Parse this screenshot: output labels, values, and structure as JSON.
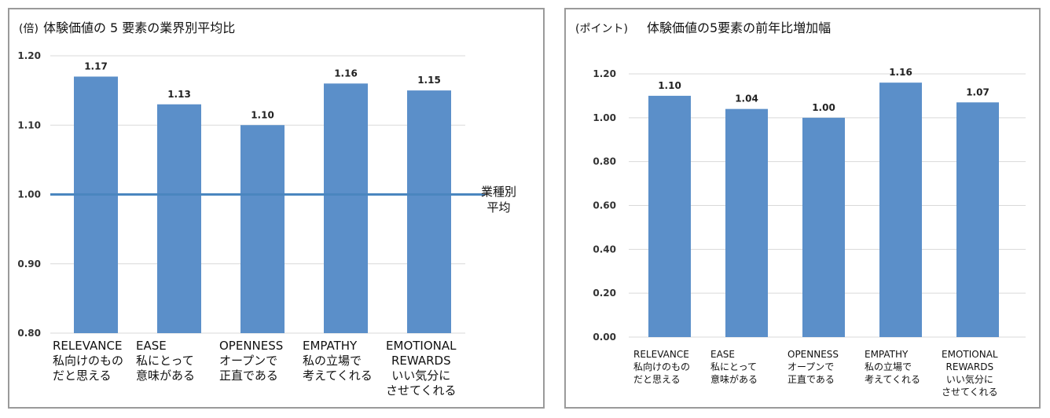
{
  "chart_data": [
    {
      "type": "bar",
      "unit": "(倍)",
      "title": "体験価値の 5 要素の業界別平均比",
      "categories": [
        {
          "en": "RELEVANCE",
          "jp": [
            "私向けのもの",
            "だと思える"
          ]
        },
        {
          "en": "EASE",
          "jp": [
            "私にとって",
            "意味がある"
          ]
        },
        {
          "en": "OPENNESS",
          "jp": [
            "オープンで",
            "正直である"
          ]
        },
        {
          "en": "EMPATHY",
          "jp": [
            "私の立場で",
            "考えてくれる"
          ]
        },
        {
          "en": "EMOTIONAL",
          "en2": "REWARDS",
          "jp": [
            "いい気分に",
            "させてくれる"
          ]
        }
      ],
      "values": [
        1.17,
        1.13,
        1.1,
        1.16,
        1.15
      ],
      "value_labels": [
        "1.17",
        "1.13",
        "1.10",
        "1.16",
        "1.15"
      ],
      "ylim": [
        0.8,
        1.2
      ],
      "yticks": [
        "0.80",
        "0.90",
        "1.00",
        "1.10",
        "1.20"
      ],
      "reference_line": {
        "value": 1.0,
        "label": [
          "業種別",
          "平均"
        ]
      },
      "grid": true,
      "bar_color": "#5b8fc9",
      "ref_color": "#4a86bf"
    },
    {
      "type": "bar",
      "unit": "(ポイント)",
      "title": "体験価値の5要素の前年比増加幅",
      "categories": [
        {
          "en": "RELEVANCE",
          "jp": [
            "私向けのもの",
            "だと思える"
          ]
        },
        {
          "en": "EASE",
          "jp": [
            "私にとって",
            "意味がある"
          ]
        },
        {
          "en": "OPENNESS",
          "jp": [
            "オープンで",
            "正直である"
          ]
        },
        {
          "en": "EMPATHY",
          "jp": [
            "私の立場で",
            "考えてくれる"
          ]
        },
        {
          "en": "EMOTIONAL",
          "en2": "REWARDS",
          "jp": [
            "いい気分に",
            "させてくれる"
          ]
        }
      ],
      "values": [
        1.1,
        1.04,
        1.0,
        1.16,
        1.07
      ],
      "value_labels": [
        "1.10",
        "1.04",
        "1.00",
        "1.16",
        "1.07"
      ],
      "ylim": [
        0.0,
        1.2
      ],
      "yticks": [
        "0.00",
        "0.20",
        "0.40",
        "0.60",
        "0.80",
        "1.00",
        "1.20"
      ],
      "grid": true,
      "bar_color": "#5b8fc9"
    }
  ]
}
